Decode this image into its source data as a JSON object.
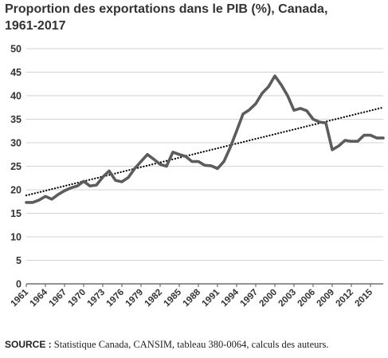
{
  "chart_data": {
    "type": "line",
    "title": "Proportion des exportations dans le PIB (%), Canada,",
    "subtitle": "1961-2017",
    "xlabel": "",
    "ylabel": "",
    "ylim": [
      0,
      50
    ],
    "yticks": [
      0,
      5,
      10,
      15,
      20,
      25,
      30,
      35,
      40,
      45,
      50
    ],
    "xlim": [
      1961,
      2017
    ],
    "xticks": [
      "1961",
      "1964",
      "1967",
      "1970",
      "1973",
      "1976",
      "1979",
      "1982",
      "1985",
      "1988",
      "1991",
      "1994",
      "1997",
      "2000",
      "2003",
      "2006",
      "2009",
      "2012",
      "2015"
    ],
    "grid": "horizontal",
    "legend": "none",
    "series": [
      {
        "style": "solid",
        "color": "#5c5c5c",
        "x": [
          1961,
          1962,
          1963,
          1964,
          1965,
          1966,
          1967,
          1968,
          1969,
          1970,
          1971,
          1972,
          1973,
          1974,
          1975,
          1976,
          1977,
          1978,
          1979,
          1980,
          1981,
          1982,
          1983,
          1984,
          1985,
          1986,
          1987,
          1988,
          1989,
          1990,
          1991,
          1992,
          1993,
          1994,
          1995,
          1996,
          1997,
          1998,
          1999,
          2000,
          2001,
          2002,
          2003,
          2004,
          2005,
          2006,
          2007,
          2008,
          2009,
          2010,
          2011,
          2012,
          2013,
          2014,
          2015,
          2016,
          2017
        ],
        "values": [
          17.3,
          17.3,
          17.8,
          18.6,
          18.0,
          19.0,
          19.8,
          20.4,
          20.8,
          21.8,
          20.8,
          21.0,
          22.7,
          24.0,
          22.0,
          21.7,
          22.6,
          24.5,
          26.0,
          27.5,
          26.5,
          25.4,
          25.0,
          28.0,
          27.5,
          27.1,
          26.0,
          26.0,
          25.2,
          25.1,
          24.5,
          26.0,
          29.0,
          32.5,
          36.1,
          37.0,
          38.3,
          40.5,
          41.9,
          44.2,
          42.3,
          40.0,
          36.9,
          37.3,
          36.8,
          35.0,
          34.4,
          34.2,
          28.5,
          29.3,
          30.5,
          30.3,
          30.3,
          31.6,
          31.6,
          31.0,
          31.0
        ]
      },
      {
        "style": "dotted",
        "color": "#000000",
        "x": [
          1961,
          2017
        ],
        "values": [
          18.8,
          37.5
        ]
      }
    ]
  },
  "source": {
    "label": "SOURCE :",
    "text": " Statistique Canada, CANSIM, tableau 380-0064, calculs des auteurs."
  }
}
